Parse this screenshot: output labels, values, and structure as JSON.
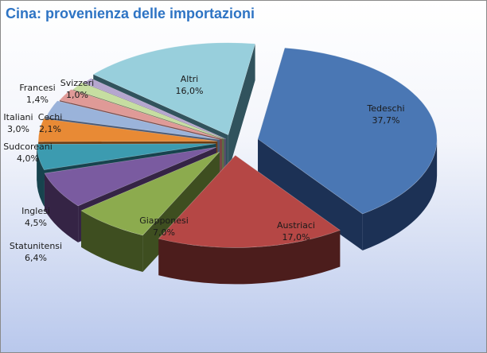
{
  "chart_data": {
    "type": "pie",
    "title": "Cina: provenienza delle importazioni",
    "slices": [
      {
        "name": "Tedeschi",
        "value": 37.7,
        "label": "37,7%",
        "color": "#4a77b4",
        "side": "#1c3155"
      },
      {
        "name": "Austriaci",
        "value": 17.0,
        "label": "17,0%",
        "color": "#b54745",
        "side": "#4c1d1c"
      },
      {
        "name": "Giapponesi",
        "value": 7.0,
        "label": "7,0%",
        "color": "#8cab4e",
        "side": "#3e4e20"
      },
      {
        "name": "Statunitensi",
        "value": 6.4,
        "label": "6,4%",
        "color": "#7a5ba0",
        "side": "#352445"
      },
      {
        "name": "Inglesi",
        "value": 4.5,
        "label": "4,5%",
        "color": "#3c9bb0",
        "side": "#17434e"
      },
      {
        "name": "Sudcoreani",
        "value": 4.0,
        "label": "4,0%",
        "color": "#e88a35",
        "side": "#6e3d12"
      },
      {
        "name": "Italiani",
        "value": 3.0,
        "label": "3,0%",
        "color": "#9ab3da",
        "side": "#4a5a76"
      },
      {
        "name": "Cechi",
        "value": 2.1,
        "label": "2,1%",
        "color": "#df9a97",
        "side": "#7b4644"
      },
      {
        "name": "Francesi",
        "value": 1.4,
        "label": "1,4%",
        "color": "#c6dea1",
        "side": "#5d6e44"
      },
      {
        "name": "Svizzeri",
        "value": 1.0,
        "label": "1,0%",
        "color": "#b5a6cf",
        "side": "#584c6e"
      },
      {
        "name": "Altri",
        "value": 16.0,
        "label": "16,0%",
        "color": "#98cfdc",
        "side": "#31535d"
      }
    ]
  }
}
